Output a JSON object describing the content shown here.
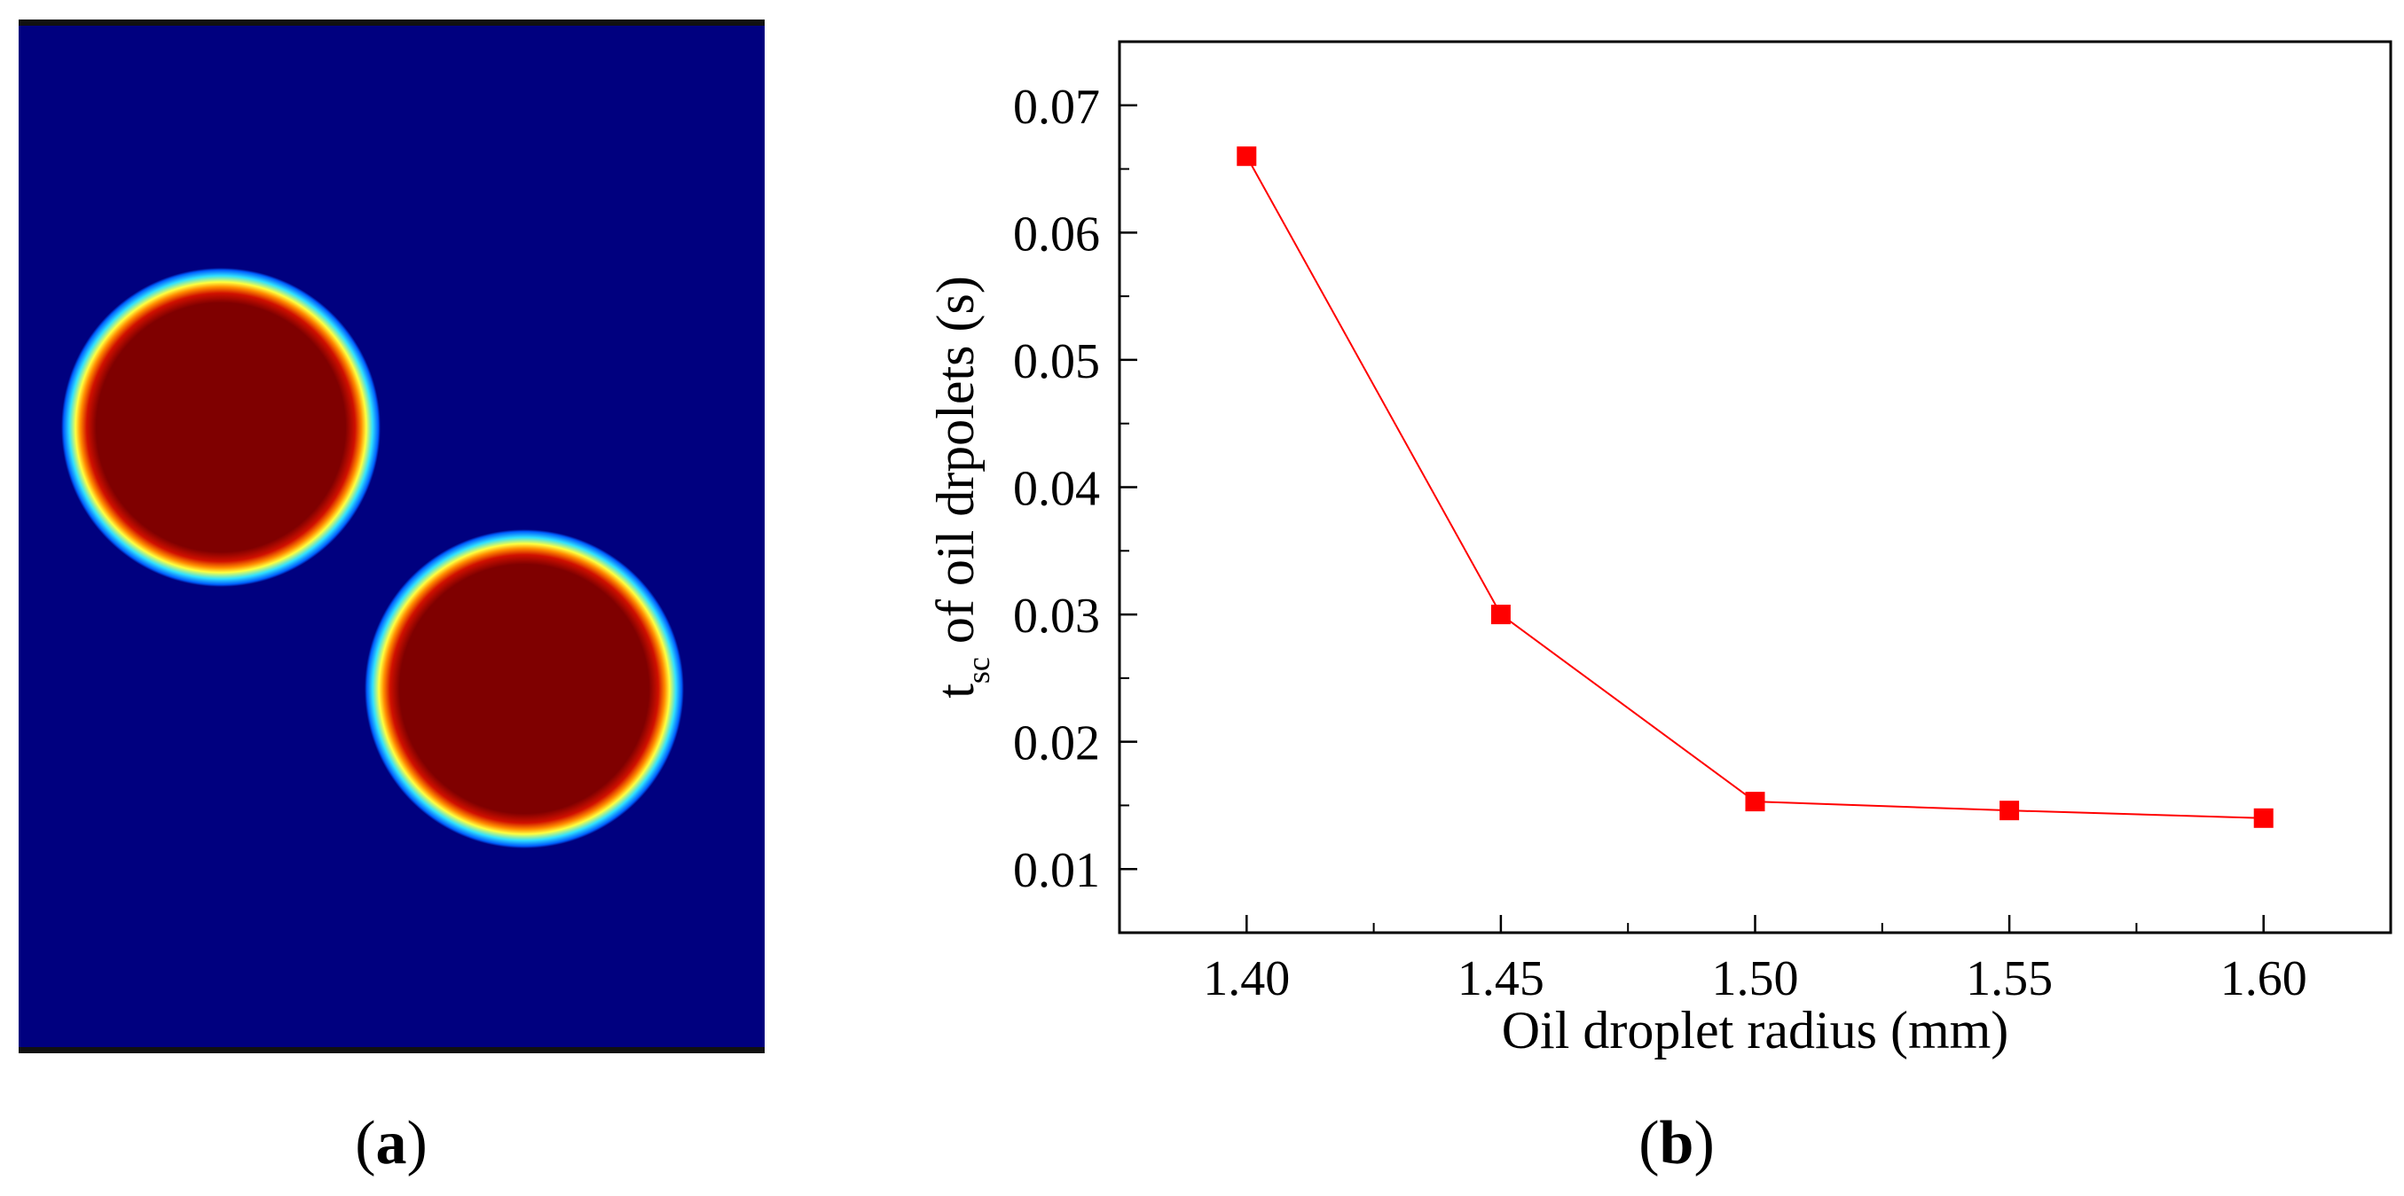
{
  "panels": [
    {
      "open": "(",
      "letter": "a",
      "close": ")"
    },
    {
      "open": "(",
      "letter": "b",
      "close": ")"
    }
  ],
  "simulation": {
    "colors": {
      "background": "#00007f",
      "core": "#7f0000",
      "ring_red": "#d01000",
      "ring_orange": "#ff8c00",
      "ring_yellow": "#ffff40",
      "ring_cyan": "#30e0ff",
      "ring_blue": "#0060ff",
      "border": "#111111"
    },
    "droplets": [
      {
        "label": "droplet-upper-left"
      },
      {
        "label": "droplet-lower-right"
      }
    ]
  },
  "chart_data": {
    "type": "line",
    "x": [
      1.4,
      1.45,
      1.5,
      1.55,
      1.6
    ],
    "series": [
      {
        "name": "t_sc",
        "values": [
          0.066,
          0.03,
          0.0153,
          0.0146,
          0.014
        ],
        "color": "#ff0000"
      }
    ],
    "xlim": [
      1.375,
      1.625
    ],
    "ylim": [
      0.005,
      0.075
    ],
    "xticks": [
      1.4,
      1.45,
      1.5,
      1.55,
      1.6
    ],
    "xtick_labels": [
      "1.40",
      "1.45",
      "1.50",
      "1.55",
      "1.60"
    ],
    "yticks": [
      0.01,
      0.02,
      0.03,
      0.04,
      0.05,
      0.06,
      0.07
    ],
    "ytick_labels": [
      "0.01",
      "0.02",
      "0.03",
      "0.04",
      "0.05",
      "0.06",
      "0.07"
    ],
    "xlabel": "Oil droplet radius (mm)",
    "ylabel_main": "t",
    "ylabel_sub": "sc",
    "ylabel_rest": " of oil drpolets (s)",
    "grid": false,
    "legend": "none"
  }
}
